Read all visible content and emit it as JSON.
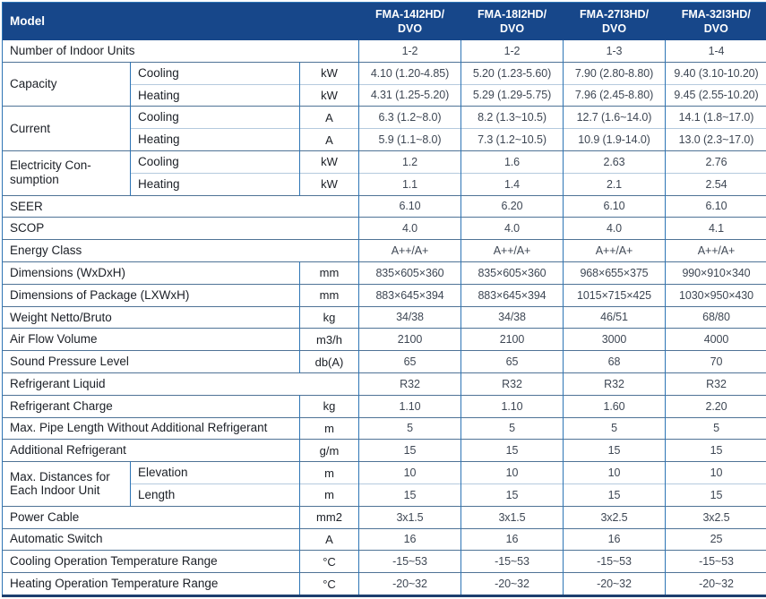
{
  "colors": {
    "header_bg": "#17478A",
    "header_text": "#FFFFFF",
    "border_vertical": "#2E75B5",
    "border_section": "#4F7396",
    "border_subrow": "#B5CADE",
    "bottom_bar": "#1C3E6E",
    "label_text": "#1B1F26",
    "value_text": "#3E4754"
  },
  "header": {
    "model_label": "Model",
    "columns": [
      {
        "line1": "FMA-14I2HD/",
        "line2": "DVO"
      },
      {
        "line1": "FMA-18I2HD/",
        "line2": "DVO"
      },
      {
        "line1": "FMA-27I3HD/",
        "line2": "DVO"
      },
      {
        "line1": "FMA-32I3HD/",
        "line2": "DVO"
      }
    ]
  },
  "rows": [
    {
      "label": "Number of Indoor Units",
      "values": [
        "1-2",
        "1-2",
        "1-3",
        "1-4"
      ]
    },
    {
      "label": "Capacity",
      "sublabel": "Cooling",
      "unit": "kW",
      "values": [
        "4.10 (1.20-4.85)",
        "5.20 (1.23-5.60)",
        "7.90 (2.80-8.80)",
        "9.40 (3.10-10.20)"
      ]
    },
    {
      "sublabel": "Heating",
      "unit": "kW",
      "values": [
        "4.31 (1.25-5.20)",
        "5.29 (1.29-5.75)",
        "7.96 (2.45-8.80)",
        "9.45 (2.55-10.20)"
      ]
    },
    {
      "label": "Current",
      "sublabel": "Cooling",
      "unit": "A",
      "values": [
        "6.3 (1.2~8.0)",
        "8.2 (1.3~10.5)",
        "12.7 (1.6~14.0)",
        "14.1 (1.8~17.0)"
      ]
    },
    {
      "sublabel": "Heating",
      "unit": "A",
      "values": [
        "5.9 (1.1~8.0)",
        "7.3 (1.2~10.5)",
        "10.9 (1.9-14.0)",
        "13.0 (2.3~17.0)"
      ]
    },
    {
      "label": "Electricity Con-sumption",
      "sublabel": "Cooling",
      "unit": "kW",
      "values": [
        "1.2",
        "1.6",
        "2.63",
        "2.76"
      ]
    },
    {
      "sublabel": "Heating",
      "unit": "kW",
      "values": [
        "1.1",
        "1.4",
        "2.1",
        "2.54"
      ]
    },
    {
      "label": "SEER",
      "values": [
        "6.10",
        "6.20",
        "6.10",
        "6.10"
      ]
    },
    {
      "label": "SCOP",
      "values": [
        "4.0",
        "4.0",
        "4.0",
        "4.1"
      ]
    },
    {
      "label": "Energy Class",
      "values": [
        "A++/A+",
        "A++/A+",
        "A++/A+",
        "A++/A+"
      ]
    },
    {
      "label": "Dimensions (WxDxH)",
      "unit": "mm",
      "values": [
        "835×605×360",
        "835×605×360",
        "968×655×375",
        "990×910×340"
      ]
    },
    {
      "label": "Dimensions of Package (LXWxH)",
      "unit": "mm",
      "values": [
        "883×645×394",
        "883×645×394",
        "1015×715×425",
        "1030×950×430"
      ]
    },
    {
      "label": "Weight Netto/Bruto",
      "unit": "kg",
      "values": [
        "34/38",
        "34/38",
        "46/51",
        "68/80"
      ]
    },
    {
      "label": "Air Flow Volume",
      "unit": "m3/h",
      "values": [
        "2100",
        "2100",
        "3000",
        "4000"
      ]
    },
    {
      "label": "Sound Pressure Level",
      "unit": "db(A)",
      "values": [
        "65",
        "65",
        "68",
        "70"
      ]
    },
    {
      "label": "Refrigerant Liquid",
      "values": [
        "R32",
        "R32",
        "R32",
        "R32"
      ]
    },
    {
      "label": "Refrigerant Charge",
      "unit": "kg",
      "values": [
        "1.10",
        "1.10",
        "1.60",
        "2.20"
      ]
    },
    {
      "label": "Max. Pipe Length Without Additional Refrigerant",
      "unit": "m",
      "values": [
        "5",
        "5",
        "5",
        "5"
      ]
    },
    {
      "label": "Additional Refrigerant",
      "unit": "g/m",
      "values": [
        "15",
        "15",
        "15",
        "15"
      ]
    },
    {
      "label": "Max. Distances for Each Indoor Unit",
      "sublabel": "Elevation",
      "unit": "m",
      "values": [
        "10",
        "10",
        "10",
        "10"
      ]
    },
    {
      "sublabel": "Length",
      "unit": "m",
      "values": [
        "15",
        "15",
        "15",
        "15"
      ]
    },
    {
      "label": "Power Cable",
      "unit": "mm2",
      "values": [
        "3x1.5",
        "3x1.5",
        "3x2.5",
        "3x2.5"
      ]
    },
    {
      "label": "Automatic Switch",
      "unit": "A",
      "values": [
        "16",
        "16",
        "16",
        "25"
      ]
    },
    {
      "label": "Cooling Operation Temperature Range",
      "unit": "°C",
      "values": [
        "-15~53",
        "-15~53",
        "-15~53",
        "-15~53"
      ]
    },
    {
      "label": "Heating Operation Temperature Range",
      "unit": "°C",
      "values": [
        "-20~32",
        "-20~32",
        "-20~32",
        "-20~32"
      ]
    }
  ]
}
